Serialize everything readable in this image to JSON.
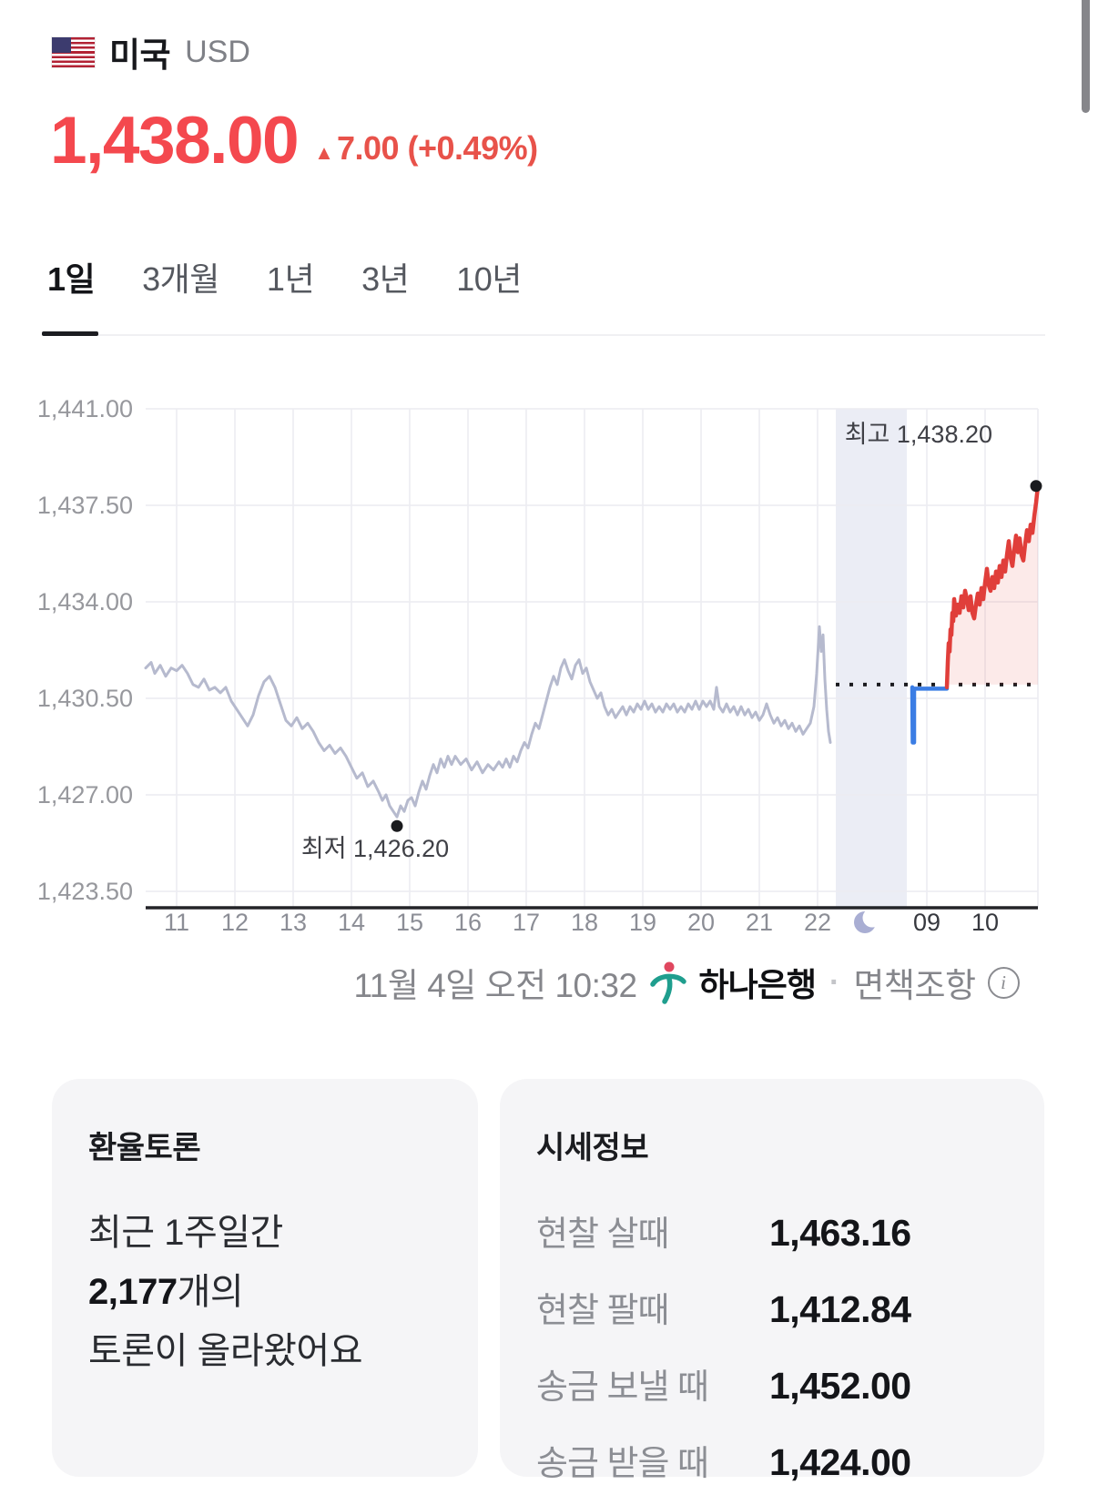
{
  "header": {
    "country": "미국",
    "currency_code": "USD",
    "price": "1,438.00",
    "change_arrow": "▲",
    "change_text": "7.00 (+0.49%)"
  },
  "tabs": [
    {
      "label": "1일",
      "selected": true
    },
    {
      "label": "3개월",
      "selected": false
    },
    {
      "label": "1년",
      "selected": false
    },
    {
      "label": "3년",
      "selected": false
    },
    {
      "label": "10년",
      "selected": false
    }
  ],
  "chart_data": {
    "type": "line",
    "title": "USD/KRW 1일 환율 차트",
    "ylim": [
      1423.5,
      1441.0
    ],
    "y_ticks": [
      {
        "value": 1441.0,
        "label": "1,441.00"
      },
      {
        "value": 1437.5,
        "label": "1,437.50"
      },
      {
        "value": 1434.0,
        "label": "1,434.00"
      },
      {
        "value": 1430.5,
        "label": "1,430.50"
      },
      {
        "value": 1427.0,
        "label": "1,427.00"
      },
      {
        "value": 1423.5,
        "label": "1,423.50"
      }
    ],
    "x_hour_ticks": [
      "11",
      "12",
      "13",
      "14",
      "15",
      "16",
      "17",
      "18",
      "19",
      "20",
      "21",
      "22"
    ],
    "x_morning_ticks": [
      "09",
      "10"
    ],
    "night_gap_icon": "moon-icon",
    "previous_close": 1431.0,
    "high": {
      "label": "최고 1,438.20",
      "value": 1438.2
    },
    "low": {
      "label": "최저 1,426.20",
      "value": 1426.2
    },
    "series": [
      {
        "name": "previous-session",
        "color": "#b6bace",
        "width": 3,
        "points": [
          [
            160,
            1431.6
          ],
          [
            166,
            1431.8
          ],
          [
            170,
            1431.4
          ],
          [
            176,
            1431.7
          ],
          [
            182,
            1431.3
          ],
          [
            188,
            1431.6
          ],
          [
            194,
            1431.5
          ],
          [
            200,
            1431.7
          ],
          [
            206,
            1431.4
          ],
          [
            212,
            1431.0
          ],
          [
            218,
            1430.9
          ],
          [
            224,
            1431.2
          ],
          [
            230,
            1430.8
          ],
          [
            236,
            1430.9
          ],
          [
            242,
            1430.7
          ],
          [
            248,
            1430.9
          ],
          [
            254,
            1430.4
          ],
          [
            260,
            1430.1
          ],
          [
            266,
            1429.8
          ],
          [
            272,
            1429.5
          ],
          [
            278,
            1429.9
          ],
          [
            284,
            1430.6
          ],
          [
            290,
            1431.1
          ],
          [
            296,
            1431.3
          ],
          [
            302,
            1430.9
          ],
          [
            308,
            1430.3
          ],
          [
            314,
            1429.7
          ],
          [
            320,
            1429.5
          ],
          [
            326,
            1429.8
          ],
          [
            332,
            1429.4
          ],
          [
            338,
            1429.6
          ],
          [
            344,
            1429.3
          ],
          [
            350,
            1428.9
          ],
          [
            356,
            1428.6
          ],
          [
            362,
            1428.8
          ],
          [
            368,
            1428.5
          ],
          [
            374,
            1428.7
          ],
          [
            380,
            1428.4
          ],
          [
            386,
            1428.0
          ],
          [
            392,
            1427.6
          ],
          [
            398,
            1427.8
          ],
          [
            404,
            1427.3
          ],
          [
            410,
            1427.5
          ],
          [
            416,
            1427.1
          ],
          [
            420,
            1426.8
          ],
          [
            424,
            1427.0
          ],
          [
            428,
            1426.6
          ],
          [
            432,
            1426.4
          ],
          [
            436,
            1426.2
          ],
          [
            440,
            1426.6
          ],
          [
            444,
            1426.4
          ],
          [
            448,
            1426.8
          ],
          [
            452,
            1426.9
          ],
          [
            456,
            1426.6
          ],
          [
            460,
            1427.1
          ],
          [
            464,
            1427.5
          ],
          [
            468,
            1427.2
          ],
          [
            472,
            1427.7
          ],
          [
            476,
            1428.1
          ],
          [
            480,
            1427.8
          ],
          [
            484,
            1428.3
          ],
          [
            488,
            1428.0
          ],
          [
            492,
            1428.4
          ],
          [
            496,
            1428.1
          ],
          [
            500,
            1428.4
          ],
          [
            506,
            1428.1
          ],
          [
            512,
            1428.3
          ],
          [
            518,
            1427.9
          ],
          [
            524,
            1428.2
          ],
          [
            530,
            1427.8
          ],
          [
            536,
            1428.1
          ],
          [
            542,
            1427.9
          ],
          [
            548,
            1428.2
          ],
          [
            552,
            1428.0
          ],
          [
            556,
            1428.3
          ],
          [
            560,
            1428.0
          ],
          [
            564,
            1428.4
          ],
          [
            568,
            1428.2
          ],
          [
            572,
            1428.6
          ],
          [
            576,
            1428.9
          ],
          [
            580,
            1428.7
          ],
          [
            584,
            1429.2
          ],
          [
            588,
            1429.6
          ],
          [
            592,
            1429.4
          ],
          [
            596,
            1429.9
          ],
          [
            600,
            1430.4
          ],
          [
            604,
            1430.9
          ],
          [
            608,
            1431.3
          ],
          [
            612,
            1431.0
          ],
          [
            616,
            1431.6
          ],
          [
            620,
            1431.9
          ],
          [
            624,
            1431.5
          ],
          [
            628,
            1431.2
          ],
          [
            632,
            1431.7
          ],
          [
            636,
            1431.9
          ],
          [
            640,
            1431.4
          ],
          [
            644,
            1431.6
          ],
          [
            648,
            1431.1
          ],
          [
            652,
            1430.8
          ],
          [
            656,
            1430.5
          ],
          [
            660,
            1430.7
          ],
          [
            664,
            1430.2
          ],
          [
            668,
            1429.9
          ],
          [
            672,
            1430.1
          ],
          [
            676,
            1429.8
          ],
          [
            680,
            1430.0
          ],
          [
            684,
            1430.2
          ],
          [
            688,
            1429.9
          ],
          [
            692,
            1430.2
          ],
          [
            696,
            1430.0
          ],
          [
            700,
            1430.3
          ],
          [
            704,
            1430.1
          ],
          [
            708,
            1430.4
          ],
          [
            712,
            1430.1
          ],
          [
            716,
            1430.3
          ],
          [
            720,
            1430.0
          ],
          [
            724,
            1430.2
          ],
          [
            728,
            1430.0
          ],
          [
            732,
            1430.3
          ],
          [
            736,
            1430.1
          ],
          [
            740,
            1430.3
          ],
          [
            744,
            1430.0
          ],
          [
            748,
            1430.2
          ],
          [
            752,
            1430.0
          ],
          [
            756,
            1430.3
          ],
          [
            760,
            1430.1
          ],
          [
            764,
            1430.4
          ],
          [
            768,
            1430.1
          ],
          [
            772,
            1430.4
          ],
          [
            776,
            1430.2
          ],
          [
            780,
            1430.4
          ],
          [
            784,
            1430.1
          ],
          [
            787,
            1430.9
          ],
          [
            790,
            1430.2
          ],
          [
            794,
            1430.0
          ],
          [
            798,
            1430.3
          ],
          [
            802,
            1430.0
          ],
          [
            806,
            1430.2
          ],
          [
            810,
            1429.9
          ],
          [
            814,
            1430.2
          ],
          [
            818,
            1429.9
          ],
          [
            822,
            1430.1
          ],
          [
            826,
            1429.8
          ],
          [
            830,
            1430.0
          ],
          [
            834,
            1429.7
          ],
          [
            838,
            1429.9
          ],
          [
            842,
            1430.3
          ],
          [
            846,
            1429.9
          ],
          [
            850,
            1429.6
          ],
          [
            854,
            1429.8
          ],
          [
            858,
            1429.5
          ],
          [
            862,
            1429.7
          ],
          [
            866,
            1429.4
          ],
          [
            870,
            1429.6
          ],
          [
            874,
            1429.3
          ],
          [
            878,
            1429.5
          ],
          [
            882,
            1429.2
          ],
          [
            886,
            1429.4
          ],
          [
            890,
            1429.6
          ],
          [
            894,
            1430.2
          ],
          [
            897,
            1431.4
          ],
          [
            900,
            1433.1
          ],
          [
            902,
            1432.2
          ],
          [
            904,
            1432.8
          ],
          [
            906,
            1431.2
          ],
          [
            908,
            1430.1
          ],
          [
            910,
            1429.3
          ],
          [
            912,
            1428.9
          ]
        ]
      },
      {
        "name": "today-below-close",
        "color": "#3b7de4",
        "width": 4.5,
        "points": [
          [
            1002,
            1430.9
          ],
          [
            1002.5,
            1428.9
          ],
          [
            1004,
            1428.9
          ],
          [
            1004,
            1430.85
          ],
          [
            1040,
            1430.85
          ]
        ]
      },
      {
        "name": "today-above-close",
        "color": "#e03e3a",
        "width": 4.5,
        "fill": "rgba(224,62,58,0.11)",
        "points": [
          [
            1040,
            1430.9
          ],
          [
            1041,
            1431.8
          ],
          [
            1042,
            1432.5
          ],
          [
            1043,
            1432.2
          ],
          [
            1044,
            1433.0
          ],
          [
            1045,
            1432.8
          ],
          [
            1046,
            1433.6
          ],
          [
            1047,
            1433.3
          ],
          [
            1048,
            1434.1
          ],
          [
            1049,
            1433.8
          ],
          [
            1050,
            1433.5
          ],
          [
            1052,
            1433.9
          ],
          [
            1054,
            1433.6
          ],
          [
            1056,
            1434.2
          ],
          [
            1058,
            1433.8
          ],
          [
            1060,
            1434.4
          ],
          [
            1062,
            1434.1
          ],
          [
            1064,
            1433.7
          ],
          [
            1066,
            1434.2
          ],
          [
            1068,
            1433.6
          ],
          [
            1070,
            1433.4
          ],
          [
            1072,
            1433.9
          ],
          [
            1074,
            1434.3
          ],
          [
            1076,
            1433.9
          ],
          [
            1078,
            1434.5
          ],
          [
            1080,
            1434.1
          ],
          [
            1082,
            1434.7
          ],
          [
            1084,
            1435.2
          ],
          [
            1086,
            1434.6
          ],
          [
            1088,
            1434.4
          ],
          [
            1090,
            1434.9
          ],
          [
            1092,
            1434.5
          ],
          [
            1094,
            1435.1
          ],
          [
            1096,
            1434.7
          ],
          [
            1098,
            1435.3
          ],
          [
            1100,
            1434.9
          ],
          [
            1102,
            1435.5
          ],
          [
            1104,
            1435.1
          ],
          [
            1106,
            1435.7
          ],
          [
            1108,
            1436.2
          ],
          [
            1110,
            1435.6
          ],
          [
            1112,
            1435.3
          ],
          [
            1114,
            1435.9
          ],
          [
            1116,
            1436.4
          ],
          [
            1118,
            1435.8
          ],
          [
            1120,
            1436.3
          ],
          [
            1122,
            1435.7
          ],
          [
            1124,
            1435.5
          ],
          [
            1126,
            1436.1
          ],
          [
            1128,
            1436.6
          ],
          [
            1130,
            1436.2
          ],
          [
            1132,
            1436.8
          ],
          [
            1134,
            1436.5
          ],
          [
            1136,
            1437.1
          ],
          [
            1138,
            1437.6
          ],
          [
            1140,
            1438.2
          ]
        ]
      }
    ],
    "grid": true,
    "legend": "none",
    "colors": {
      "grid": "#ececf1",
      "axis": "#232428",
      "night_band": "#ebedf5",
      "dotted_line": "#1b1b1f",
      "tick_label": "#8c8e96",
      "tick_label_emphasis": "#36383e",
      "y_label": "#97989d",
      "annotation": "#3f4046",
      "moon": "#a9aed3"
    }
  },
  "chart_footer": {
    "timestamp": "11월 4일 오전 10:32",
    "source": "하나은행",
    "separator": "·",
    "disclaimer": "면책조항",
    "info_icon_glyph": "i"
  },
  "discussion_card": {
    "title": "환율토론",
    "line1": "최근 1주일간",
    "count": "2,177",
    "count_suffix": "개의",
    "line3": "토론이 올라왔어요"
  },
  "quote_card": {
    "title": "시세정보",
    "rows": [
      {
        "label": "현찰 살때",
        "value": "1,463.16"
      },
      {
        "label": "현찰 팔때",
        "value": "1,412.84"
      },
      {
        "label": "송금 보낼 때",
        "value": "1,452.00"
      },
      {
        "label": "송금 받을 때",
        "value": "1,424.00"
      }
    ]
  },
  "accent_colors": {
    "price_red": "#f4484e",
    "line_red": "#e03e3a",
    "line_blue": "#3b7de4",
    "line_gray": "#b6bace"
  }
}
